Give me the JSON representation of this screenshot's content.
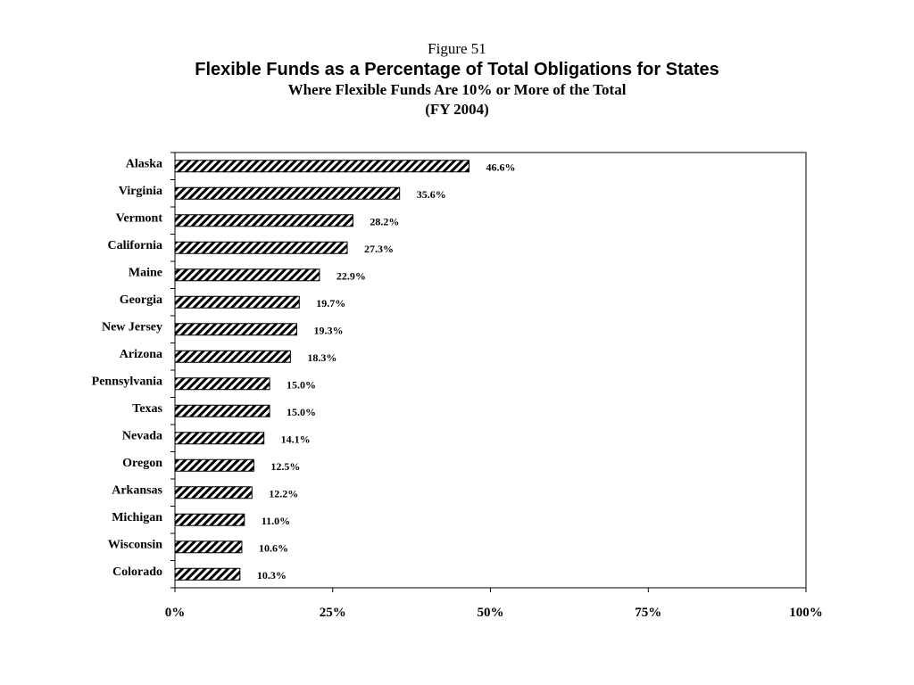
{
  "figure_label": "Figure 51",
  "title": "Flexible Funds as a Percentage of Total Obligations for States",
  "subtitle": "Where Flexible Funds Are 10% or More of the Total",
  "subtitle2": "(FY 2004)",
  "chart_data": {
    "type": "bar",
    "orientation": "horizontal",
    "categories": [
      "Alaska",
      "Virginia",
      "Vermont",
      "California",
      "Maine",
      "Georgia",
      "New Jersey",
      "Arizona",
      "Pennsylvania",
      "Texas",
      "Nevada",
      "Oregon",
      "Arkansas",
      "Michigan",
      "Wisconsin",
      "Colorado"
    ],
    "values": [
      46.6,
      35.6,
      28.2,
      27.3,
      22.9,
      19.7,
      19.3,
      18.3,
      15.0,
      15.0,
      14.1,
      12.5,
      12.2,
      11.0,
      10.6,
      10.3
    ],
    "data_labels": [
      "46.6%",
      "35.6%",
      "28.2%",
      "27.3%",
      "22.9%",
      "19.7%",
      "19.3%",
      "18.3%",
      "15.0%",
      "15.0%",
      "14.1%",
      "12.5%",
      "12.2%",
      "11.0%",
      "10.6%",
      "10.3%"
    ],
    "xlim": [
      0,
      100
    ],
    "xticks": [
      0,
      25,
      50,
      75,
      100
    ],
    "xtick_labels": [
      "0%",
      "25%",
      "50%",
      "75%",
      "100%"
    ],
    "xlabel": "",
    "ylabel": "",
    "bar_fill": "diagonal hatch",
    "grid": false,
    "legend": "none",
    "colors": {
      "bar_stroke": "#000000",
      "hatch": "#000000",
      "background": "#ffffff"
    }
  }
}
